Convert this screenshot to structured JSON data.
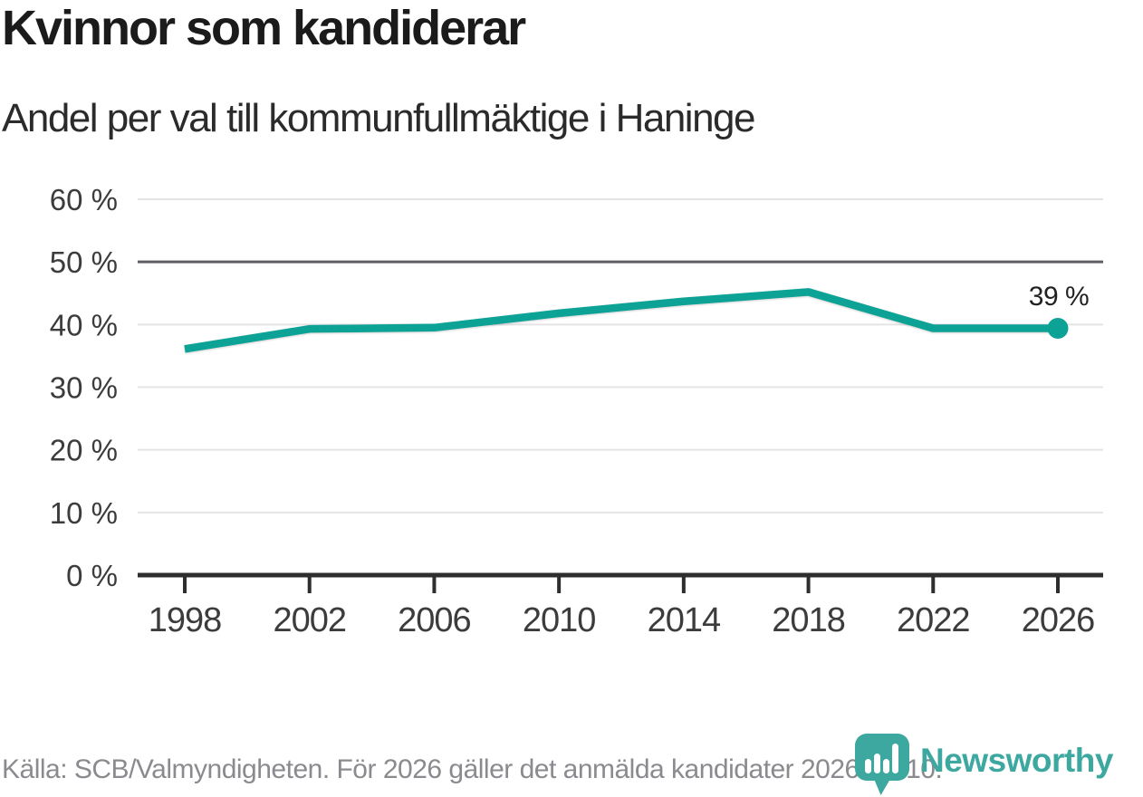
{
  "title": "Kvinnor som kandiderar",
  "subtitle": "Andel per val till kommunfullmäktige i Haninge",
  "source_note": "Källa: SCB/Valmyndigheten. För 2026 gäller det anmälda kandidater 2026-04-10.",
  "logo": {
    "name": "Newsworthy",
    "icon": "newsworthy-speech-bubble-bar-chart-icon"
  },
  "colors": {
    "line": "#0ca295",
    "marker": "#0ca295",
    "grid": "#e4e4e6",
    "reference_line": "#5f5f66",
    "axis": "#2e2e2e",
    "title_text": "#1b1b1b",
    "muted_text": "#8a8a8f",
    "logo_teal": "#3da8a0"
  },
  "chart_data": {
    "type": "line",
    "title": "Kvinnor som kandiderar",
    "subtitle": "Andel per val till kommunfullmäktige i Haninge",
    "x": [
      1998,
      2002,
      2006,
      2010,
      2014,
      2018,
      2022,
      2026
    ],
    "x_tick_labels": [
      "1998",
      "2002",
      "2006",
      "2010",
      "2014",
      "2018",
      "2022",
      "2026"
    ],
    "values": [
      36.1,
      39.3,
      39.5,
      41.8,
      43.7,
      45.2,
      39.4,
      39.4
    ],
    "unit": "%",
    "ylim": [
      0,
      60
    ],
    "y_tick_step": 10,
    "y_tick_labels": [
      "0 %",
      "10 %",
      "20 %",
      "30 %",
      "40 %",
      "50 %",
      "60 %"
    ],
    "reference_line_y": 50,
    "end_point_label": "39 %",
    "grid": "horizontal",
    "legend": "none"
  }
}
